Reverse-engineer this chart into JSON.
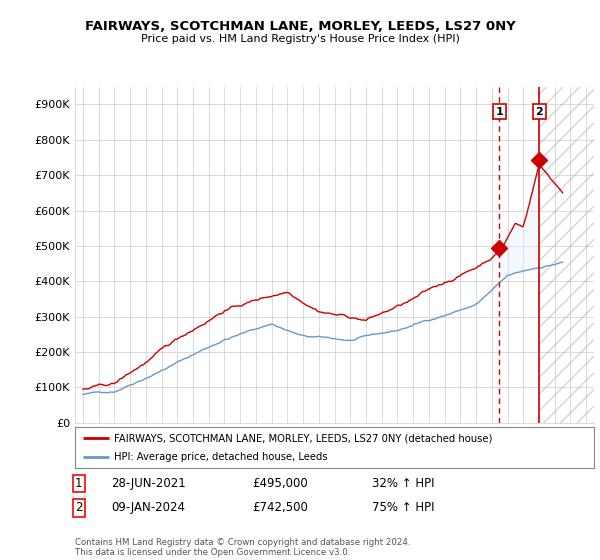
{
  "title": "FAIRWAYS, SCOTCHMAN LANE, MORLEY, LEEDS, LS27 0NY",
  "subtitle": "Price paid vs. HM Land Registry's House Price Index (HPI)",
  "ylabel_ticks": [
    "£0",
    "£100K",
    "£200K",
    "£300K",
    "£400K",
    "£500K",
    "£600K",
    "£700K",
    "£800K",
    "£900K"
  ],
  "ytick_values": [
    0,
    100000,
    200000,
    300000,
    400000,
    500000,
    600000,
    700000,
    800000,
    900000
  ],
  "ylim": [
    0,
    950000
  ],
  "xlim_start": 1994.5,
  "xlim_end": 2027.5,
  "marker1_x": 2021.48,
  "marker1_y": 495000,
  "marker2_x": 2024.03,
  "marker2_y": 742500,
  "legend_label_red": "FAIRWAYS, SCOTCHMAN LANE, MORLEY, LEEDS, LS27 0NY (detached house)",
  "legend_label_blue": "HPI: Average price, detached house, Leeds",
  "table_row1": [
    "1",
    "28-JUN-2021",
    "£495,000",
    "32% ↑ HPI"
  ],
  "table_row2": [
    "2",
    "09-JAN-2024",
    "£742,500",
    "75% ↑ HPI"
  ],
  "footnote": "Contains HM Land Registry data © Crown copyright and database right 2024.\nThis data is licensed under the Open Government Licence v3.0.",
  "red_color": "#cc0000",
  "blue_color": "#6699cc",
  "grid_color": "#cccccc",
  "background_color": "#ffffff",
  "hpi_shade_color": "#ddeeff"
}
